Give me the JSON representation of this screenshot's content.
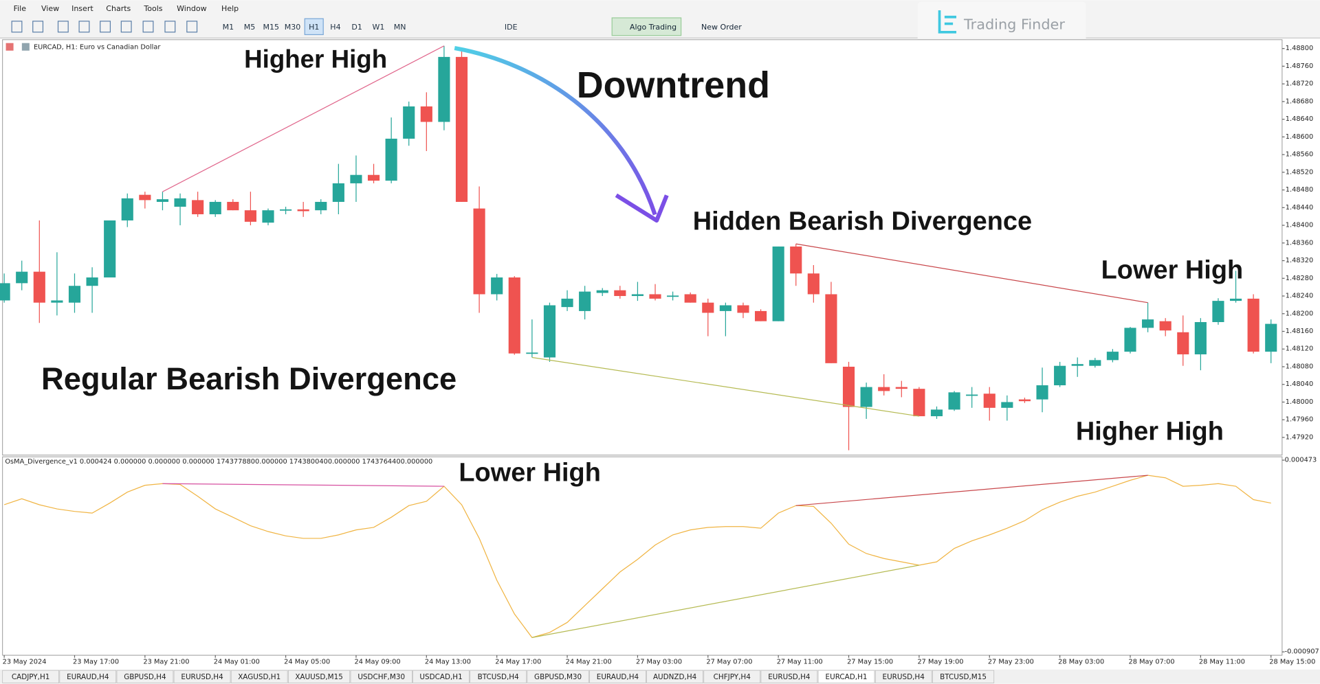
{
  "menu": [
    "File",
    "View",
    "Insert",
    "Charts",
    "Tools",
    "Window",
    "Help"
  ],
  "toolbar": {
    "timeframes": [
      "M1",
      "M5",
      "M15",
      "M30",
      "H1",
      "H4",
      "D1",
      "W1",
      "MN"
    ],
    "active_timeframe": "H1",
    "ide": "IDE",
    "algo": "Algo Trading",
    "order": "New Order"
  },
  "logo": "Trading Finder",
  "annotations": [
    "Higher High",
    "Downtrend",
    "Hidden Bearish Divergence",
    "Lower High",
    "Regular Bearish Divergence",
    "Higher High",
    "Lower High"
  ],
  "chart": {
    "type": "candlestick",
    "symbol": "EURCAD, H1:  Euro vs Canadian Dollar",
    "up_color": "#26a69a",
    "down_color": "#ef5350",
    "ylim": [
      1.4788,
      1.4882
    ],
    "yticks": [
      {
        "value": 1.488,
        "label": "1.48800"
      },
      {
        "value": 1.4876,
        "label": "1.48760"
      },
      {
        "value": 1.4872,
        "label": "1.48720"
      },
      {
        "value": 1.4868,
        "label": "1.48680"
      },
      {
        "value": 1.4864,
        "label": "1.48640"
      },
      {
        "value": 1.486,
        "label": "1.48600"
      },
      {
        "value": 1.4856,
        "label": "1.48560"
      },
      {
        "value": 1.4852,
        "label": "1.48520"
      },
      {
        "value": 1.4848,
        "label": "1.48480"
      },
      {
        "value": 1.4844,
        "label": "1.48440"
      },
      {
        "value": 1.484,
        "label": "1.48400"
      },
      {
        "value": 1.4836,
        "label": "1.48360"
      },
      {
        "value": 1.4832,
        "label": "1.48320"
      },
      {
        "value": 1.4828,
        "label": "1.48280"
      },
      {
        "value": 1.4824,
        "label": "1.48240"
      },
      {
        "value": 1.482,
        "label": "1.48200"
      },
      {
        "value": 1.4816,
        "label": "1.48160"
      },
      {
        "value": 1.4812,
        "label": "1.48120"
      },
      {
        "value": 1.4808,
        "label": "1.48080"
      },
      {
        "value": 1.4804,
        "label": "1.48040"
      },
      {
        "value": 1.48,
        "label": "1.48000"
      },
      {
        "value": 1.4796,
        "label": "1.47960"
      },
      {
        "value": 1.4792,
        "label": "1.47920"
      }
    ],
    "xlabels": [
      "23 May 2024",
      "23 May 17:00",
      "23 May 21:00",
      "24 May 01:00",
      "24 May 05:00",
      "24 May 09:00",
      "24 May 13:00",
      "24 May 17:00",
      "24 May 21:00",
      "27 May 03:00",
      "27 May 07:00",
      "27 May 11:00",
      "27 May 15:00",
      "27 May 19:00",
      "27 May 23:00",
      "28 May 03:00",
      "28 May 07:00",
      "28 May 11:00",
      "28 May 15:00"
    ],
    "candles": [
      [
        1.4823,
        1.48291,
        1.48225,
        1.48269
      ],
      [
        1.48269,
        1.4832,
        1.48253,
        1.48295
      ],
      [
        1.48295,
        1.48411,
        1.48179,
        1.48225
      ],
      [
        1.48225,
        1.48339,
        1.48196,
        1.4823
      ],
      [
        1.48225,
        1.48291,
        1.48202,
        1.48263
      ],
      [
        1.48263,
        1.48305,
        1.48202,
        1.48282
      ],
      [
        1.48282,
        1.48411,
        1.48282,
        1.48411
      ],
      [
        1.48411,
        1.48472,
        1.48396,
        1.48461
      ],
      [
        1.48469,
        1.48476,
        1.48438,
        1.48457
      ],
      [
        1.48453,
        1.48476,
        1.48434,
        1.48459
      ],
      [
        1.48442,
        1.48472,
        1.484,
        1.48461
      ],
      [
        1.48457,
        1.48476,
        1.48419,
        1.48425
      ],
      [
        1.48425,
        1.48457,
        1.48419,
        1.48453
      ],
      [
        1.48453,
        1.48459,
        1.48434,
        1.48434
      ],
      [
        1.48434,
        1.48476,
        1.484,
        1.48408
      ],
      [
        1.48406,
        1.48438,
        1.484,
        1.48434
      ],
      [
        1.48434,
        1.48442,
        1.48425,
        1.48436
      ],
      [
        1.48436,
        1.48453,
        1.48419,
        1.48432
      ],
      [
        1.48434,
        1.48459,
        1.48425,
        1.48453
      ],
      [
        1.48453,
        1.48539,
        1.48425,
        1.48495
      ],
      [
        1.48495,
        1.48558,
        1.48453,
        1.48514
      ],
      [
        1.48514,
        1.48539,
        1.48495,
        1.48501
      ],
      [
        1.48501,
        1.48644,
        1.48495,
        1.48596
      ],
      [
        1.48596,
        1.4868,
        1.4858,
        1.48669
      ],
      [
        1.48669,
        1.48701,
        1.48568,
        1.48634
      ],
      [
        1.48634,
        1.48806,
        1.48615,
        1.48781
      ],
      [
        1.48781,
        1.48796,
        1.48453,
        1.48453
      ],
      [
        1.48438,
        1.48488,
        1.48202,
        1.48244
      ],
      [
        1.48244,
        1.4829,
        1.4823,
        1.48282
      ],
      [
        1.48282,
        1.48285,
        1.48107,
        1.4811
      ],
      [
        1.4811,
        1.48187,
        1.48101,
        1.48112
      ],
      [
        1.48101,
        1.48225,
        1.48091,
        1.48219
      ],
      [
        1.48215,
        1.48253,
        1.48206,
        1.48234
      ],
      [
        1.48206,
        1.48263,
        1.48187,
        1.4825
      ],
      [
        1.48247,
        1.48258,
        1.4824,
        1.48253
      ],
      [
        1.48253,
        1.48263,
        1.48234,
        1.4824
      ],
      [
        1.4824,
        1.48272,
        1.48229,
        1.48244
      ],
      [
        1.48244,
        1.48267,
        1.4823,
        1.48234
      ],
      [
        1.4824,
        1.4825,
        1.4823,
        1.48241
      ],
      [
        1.48244,
        1.48248,
        1.48225,
        1.48225
      ],
      [
        1.48225,
        1.48234,
        1.48149,
        1.48202
      ],
      [
        1.48206,
        1.48225,
        1.48149,
        1.48219
      ],
      [
        1.48219,
        1.48225,
        1.4819,
        1.48202
      ],
      [
        1.48206,
        1.4821,
        1.48183,
        1.48183
      ],
      [
        1.48183,
        1.48352,
        1.48183,
        1.48352
      ],
      [
        1.48352,
        1.48358,
        1.48263,
        1.48291
      ],
      [
        1.48291,
        1.4831,
        1.48225,
        1.48244
      ],
      [
        1.48244,
        1.48272,
        1.48088,
        1.48088
      ],
      [
        1.4808,
        1.48091,
        1.47891,
        1.47989
      ],
      [
        1.47989,
        1.48044,
        1.47962,
        1.48034
      ],
      [
        1.48034,
        1.48063,
        1.48015,
        1.48025
      ],
      [
        1.48034,
        1.48048,
        1.48011,
        1.4803
      ],
      [
        1.4803,
        1.48034,
        1.47968,
        1.47968
      ],
      [
        1.47968,
        1.4799,
        1.47962,
        1.47983
      ],
      [
        1.47983,
        1.48025,
        1.4798,
        1.48022
      ],
      [
        1.48015,
        1.48034,
        1.47987,
        1.48017
      ],
      [
        1.48019,
        1.48034,
        1.47958,
        1.47987
      ],
      [
        1.47987,
        1.48015,
        1.47958,
        1.48
      ],
      [
        1.48006,
        1.4801,
        1.47998,
        1.48002
      ],
      [
        1.48006,
        1.48078,
        1.47977,
        1.48038
      ],
      [
        1.48038,
        1.48091,
        1.48034,
        1.48082
      ],
      [
        1.48082,
        1.48101,
        1.48057,
        1.48086
      ],
      [
        1.48082,
        1.481,
        1.48078,
        1.48095
      ],
      [
        1.48095,
        1.4812,
        1.4809,
        1.48114
      ],
      [
        1.48114,
        1.4817,
        1.4811,
        1.48168
      ],
      [
        1.48168,
        1.48225,
        1.48158,
        1.48187
      ],
      [
        1.48183,
        1.4819,
        1.48149,
        1.48162
      ],
      [
        1.48158,
        1.48196,
        1.48082,
        1.48108
      ],
      [
        1.48108,
        1.4819,
        1.48072,
        1.48181
      ],
      [
        1.48181,
        1.48235,
        1.48175,
        1.48229
      ],
      [
        1.48229,
        1.48297,
        1.48225,
        1.48234
      ],
      [
        1.48234,
        1.48244,
        1.4811,
        1.48114
      ],
      [
        1.48114,
        1.48187,
        1.48088,
        1.48177
      ]
    ],
    "lines": [
      {
        "from": 9,
        "to": 25,
        "point": 1,
        "color": "#e0648a"
      },
      {
        "from": 45,
        "to": 65,
        "point": 1,
        "color": "#c8464a"
      },
      {
        "from": 30,
        "to": 52,
        "point": 2,
        "color": "#b5ba52"
      }
    ]
  },
  "indicator": {
    "type": "line",
    "title": "OsMA_Divergence_v1 0.000424 0.000000 0.000000 0.000000 1743778800.000000 1743800400.000000 1743764400.000000",
    "color": "#f0b442",
    "ylim": [
      -0.000907,
      0.000473
    ],
    "yticks": [
      0.000473,
      -0.000907
    ],
    "values": [
      0.000152,
      0.000195,
      0.000152,
      0.000122,
      0.000104,
      9.2e-05,
      0.000164,
      0.000243,
      0.000292,
      0.000304,
      0.000298,
      0.000213,
      0.000122,
      6.2e-05,
      1e-06,
      -4.1e-05,
      -7.2e-05,
      -9e-05,
      -9e-05,
      -6.5e-05,
      -2.9e-05,
      -1.1e-05,
      6.2e-05,
      0.000146,
      0.000177,
      0.000285,
      0.000152,
      -9e-05,
      -0.000392,
      -0.000634,
      -0.000804,
      -0.000767,
      -0.000695,
      -0.000574,
      -0.000453,
      -0.000332,
      -0.000241,
      -0.000138,
      -6.5e-05,
      -2.9e-05,
      -1.1e-05,
      -5e-06,
      -5e-06,
      -1.7e-05,
      9.2e-05,
      0.000146,
      0.00014,
      1.9e-05,
      -0.000132,
      -0.000199,
      -0.000235,
      -0.000259,
      -0.000283,
      -0.000259,
      -0.000162,
      -0.000108,
      -6.5e-05,
      -1.7e-05,
      3.7e-05,
      0.000116,
      0.000171,
      0.000213,
      0.000243,
      0.000285,
      0.000328,
      0.000364,
      0.000346,
      0.000285,
      0.000292,
      0.000304,
      0.000285,
      0.000189,
      0.000164
    ],
    "lines": [
      {
        "from": 9,
        "to": 25,
        "color": "#d64fa0"
      },
      {
        "from": 45,
        "to": 65,
        "color": "#c8464a"
      },
      {
        "from": 30,
        "to": 52,
        "color": "#b5ba52"
      }
    ]
  },
  "tabs": [
    "CADJPY,H1",
    "EURAUD,H4",
    "GBPUSD,H4",
    "EURUSD,H4",
    "XAGUSD,H1",
    "XAUUSD,M15",
    "USDCHF,M30",
    "USDCAD,H1",
    "BTCUSD,H4",
    "GBPUSD,M30",
    "EURAUD,H4",
    "AUDNZD,H4",
    "CHFJPY,H4",
    "EURUSD,H4",
    "EURCAD,H1",
    "EURUSD,H4",
    "BTCUSD,M15"
  ],
  "active_tab": "EURCAD,H1"
}
